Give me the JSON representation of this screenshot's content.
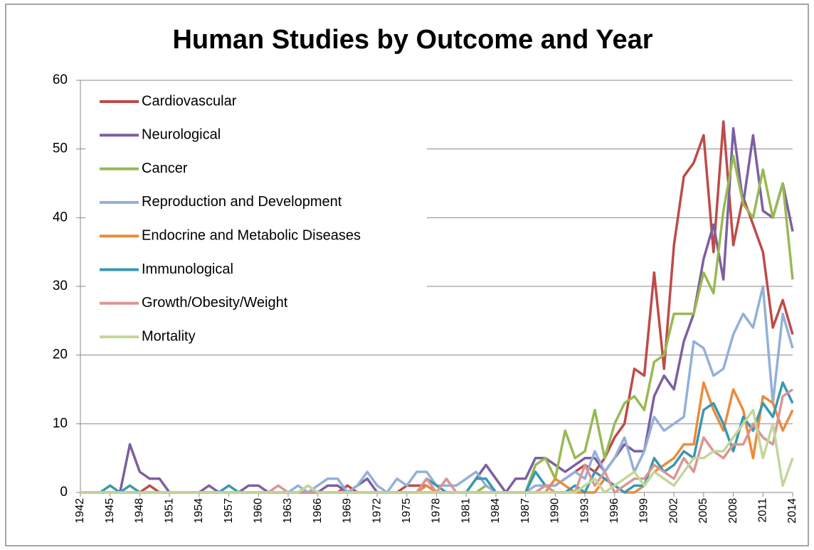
{
  "chart_data": {
    "type": "line",
    "title": "Human Studies by Outcome and Year",
    "x": [
      1942,
      1943,
      1944,
      1945,
      1946,
      1947,
      1948,
      1949,
      1950,
      1951,
      1952,
      1953,
      1954,
      1955,
      1956,
      1957,
      1958,
      1959,
      1960,
      1961,
      1962,
      1963,
      1964,
      1965,
      1966,
      1967,
      1968,
      1969,
      1970,
      1971,
      1972,
      1973,
      1974,
      1975,
      1976,
      1977,
      1978,
      1979,
      1980,
      1981,
      1982,
      1983,
      1984,
      1985,
      1986,
      1987,
      1988,
      1989,
      1990,
      1991,
      1992,
      1993,
      1994,
      1995,
      1996,
      1997,
      1998,
      1999,
      2000,
      2001,
      2002,
      2003,
      2004,
      2005,
      2006,
      2007,
      2008,
      2009,
      2010,
      2011,
      2012,
      2013,
      2014
    ],
    "xlim": [
      1942,
      2014
    ],
    "xticks": [
      1942,
      1945,
      1948,
      1951,
      1954,
      1957,
      1960,
      1963,
      1966,
      1969,
      1972,
      1975,
      1978,
      1981,
      1984,
      1987,
      1990,
      1993,
      1996,
      1999,
      2002,
      2005,
      2008,
      2011,
      2014
    ],
    "ylim": [
      0,
      60
    ],
    "yticks": [
      0,
      10,
      20,
      30,
      40,
      50,
      60
    ],
    "grid": true,
    "legend": "upper-left",
    "series": [
      {
        "name": "Cardiovascular",
        "color": "#be4b48",
        "values": [
          0,
          0,
          0,
          0,
          0,
          0,
          0,
          1,
          0,
          0,
          0,
          0,
          0,
          0,
          0,
          0,
          0,
          0,
          0,
          0,
          0,
          0,
          0,
          0,
          0,
          0,
          0,
          1,
          0,
          0,
          0,
          0,
          0,
          1,
          1,
          1,
          0,
          0,
          0,
          0,
          0,
          0,
          0,
          0,
          0,
          0,
          0,
          1,
          1,
          2,
          3,
          4,
          3,
          5,
          8,
          10,
          18,
          17,
          32,
          18,
          36,
          46,
          48,
          52,
          35,
          54,
          36,
          43,
          39,
          35,
          24,
          28,
          23
        ]
      },
      {
        "name": "Neurological",
        "color": "#7d5fa0",
        "values": [
          0,
          0,
          0,
          0,
          0,
          7,
          3,
          2,
          2,
          0,
          0,
          0,
          0,
          1,
          0,
          0,
          0,
          1,
          1,
          0,
          0,
          0,
          0,
          0,
          0,
          1,
          1,
          0,
          1,
          2,
          0,
          0,
          0,
          0,
          0,
          0,
          0,
          0,
          0,
          0,
          2,
          4,
          2,
          0,
          2,
          2,
          5,
          5,
          4,
          3,
          4,
          5,
          5,
          3,
          5,
          7,
          6,
          6,
          14,
          17,
          15,
          22,
          26,
          34,
          39,
          31,
          53,
          42,
          52,
          41,
          40,
          45,
          38
        ]
      },
      {
        "name": "Cancer",
        "color": "#98b954",
        "values": [
          0,
          0,
          0,
          0,
          0,
          0,
          0,
          0,
          0,
          0,
          0,
          0,
          0,
          0,
          0,
          0,
          0,
          0,
          0,
          0,
          0,
          0,
          0,
          1,
          0,
          0,
          0,
          0,
          0,
          0,
          0,
          0,
          0,
          0,
          0,
          0,
          0,
          0,
          0,
          0,
          0,
          1,
          0,
          0,
          0,
          0,
          4,
          5,
          2,
          9,
          5,
          6,
          12,
          5,
          10,
          13,
          14,
          12,
          19,
          20,
          26,
          26,
          26,
          32,
          29,
          41,
          49,
          42,
          40,
          47,
          40,
          45,
          31
        ]
      },
      {
        "name": "Reproduction and Development",
        "color": "#93b0d8",
        "values": [
          0,
          0,
          0,
          0,
          0,
          0,
          0,
          0,
          0,
          0,
          0,
          0,
          0,
          0,
          0,
          0,
          0,
          0,
          0,
          0,
          0,
          0,
          1,
          0,
          1,
          2,
          2,
          0,
          1,
          3,
          1,
          0,
          2,
          1,
          3,
          3,
          1,
          1,
          1,
          2,
          3,
          1,
          0,
          0,
          0,
          0,
          1,
          1,
          1,
          2,
          3,
          2,
          6,
          3,
          5,
          8,
          3,
          6,
          11,
          9,
          10,
          11,
          22,
          21,
          17,
          18,
          23,
          26,
          24,
          30,
          13,
          26,
          21
        ]
      },
      {
        "name": "Endocrine and Metabolic Diseases",
        "color": "#ec8b3c",
        "values": [
          0,
          0,
          0,
          0,
          0,
          0,
          0,
          0,
          0,
          0,
          0,
          0,
          0,
          0,
          0,
          0,
          0,
          0,
          0,
          0,
          0,
          0,
          0,
          0,
          0,
          0,
          0,
          0,
          0,
          0,
          0,
          0,
          0,
          0,
          0,
          1,
          0,
          0,
          0,
          0,
          0,
          0,
          0,
          0,
          0,
          0,
          0,
          0,
          2,
          1,
          0,
          0,
          0,
          2,
          1,
          0,
          0,
          1,
          3,
          4,
          5,
          7,
          7,
          16,
          12,
          9,
          15,
          12,
          5,
          14,
          13,
          9,
          12
        ]
      },
      {
        "name": "Immunological",
        "color": "#3a97b0",
        "values": [
          0,
          0,
          0,
          1,
          0,
          1,
          0,
          0,
          0,
          0,
          0,
          0,
          0,
          0,
          0,
          1,
          0,
          0,
          0,
          0,
          0,
          0,
          0,
          0,
          0,
          0,
          0,
          0,
          0,
          0,
          0,
          0,
          0,
          0,
          0,
          2,
          1,
          0,
          0,
          0,
          2,
          2,
          0,
          0,
          0,
          0,
          3,
          1,
          0,
          0,
          1,
          0,
          3,
          2,
          1,
          0,
          1,
          1,
          5,
          3,
          4,
          6,
          5,
          12,
          13,
          10,
          6,
          11,
          9,
          13,
          11,
          16,
          13
        ]
      },
      {
        "name": "Growth/Obesity/Weight",
        "color": "#d99694",
        "values": [
          0,
          0,
          0,
          0,
          0,
          0,
          0,
          0,
          0,
          0,
          0,
          0,
          0,
          0,
          0,
          0,
          0,
          0,
          0,
          0,
          1,
          0,
          0,
          0,
          0,
          0,
          0,
          0,
          0,
          0,
          0,
          0,
          0,
          0,
          0,
          2,
          0,
          2,
          0,
          0,
          0,
          0,
          0,
          0,
          0,
          0,
          0,
          1,
          0,
          0,
          0,
          4,
          1,
          3,
          0,
          1,
          2,
          2,
          4,
          3,
          2,
          5,
          3,
          8,
          6,
          5,
          7,
          7,
          10,
          8,
          7,
          14,
          15
        ]
      },
      {
        "name": "Mortality",
        "color": "#c3d69b",
        "values": [
          0,
          0,
          0,
          0,
          0,
          0,
          0,
          0,
          0,
          0,
          0,
          0,
          0,
          0,
          0,
          0,
          0,
          0,
          0,
          0,
          0,
          0,
          0,
          1,
          0,
          0,
          0,
          0,
          0,
          0,
          0,
          0,
          0,
          0,
          0,
          0,
          0,
          0,
          0,
          0,
          0,
          0,
          0,
          0,
          0,
          0,
          0,
          0,
          0,
          0,
          0,
          1,
          2,
          0,
          1,
          2,
          3,
          1,
          3,
          2,
          1,
          3,
          5,
          5,
          6,
          6,
          8,
          10,
          12,
          5,
          10,
          1,
          5
        ]
      }
    ]
  }
}
